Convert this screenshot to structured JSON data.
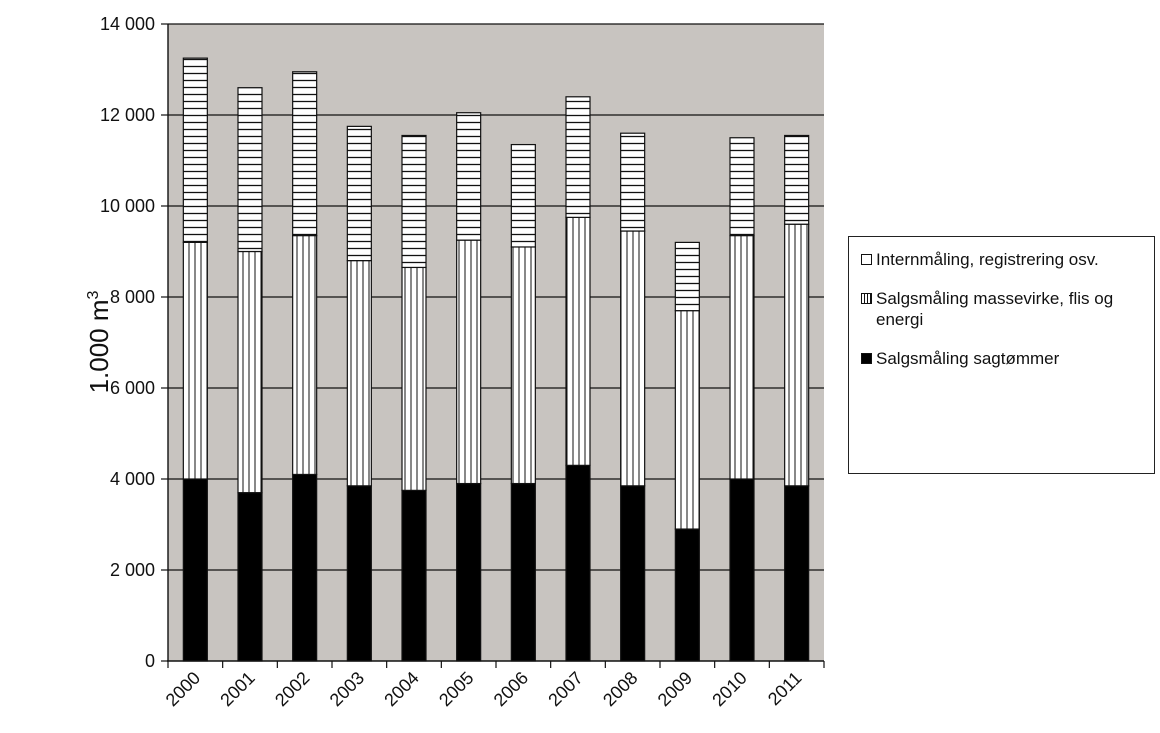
{
  "chart_data": {
    "type": "bar",
    "stacked": true,
    "title": "",
    "xlabel": "",
    "ylabel": "1.000 m",
    "ylabel_superscript": "3",
    "ylim": [
      0,
      14000
    ],
    "yticks": [
      0,
      2000,
      4000,
      6000,
      8000,
      10000,
      12000,
      14000
    ],
    "ytick_labels": [
      "0",
      "2 000",
      "4 000",
      "6 000",
      "8 000",
      "10 000",
      "12 000",
      "14 000"
    ],
    "grid": true,
    "legend_position": "right",
    "categories": [
      "2000",
      "2001",
      "2002",
      "2003",
      "2004",
      "2005",
      "2006",
      "2007",
      "2008",
      "2009",
      "2010",
      "2011"
    ],
    "series": [
      {
        "name": "Salgsmåling sagtømmer",
        "values": [
          4000,
          3700,
          4100,
          3850,
          3750,
          3900,
          3900,
          4300,
          3850,
          2900,
          4000,
          3850
        ]
      },
      {
        "name": "Salgsmåling massevirke, flis og energi",
        "values": [
          5200,
          5300,
          5250,
          4950,
          4900,
          5350,
          5200,
          5450,
          5600,
          4800,
          5350,
          5750
        ]
      },
      {
        "name": "Internmåling, registrering osv.",
        "values": [
          4050,
          3600,
          3600,
          2950,
          2900,
          2800,
          2250,
          2650,
          2150,
          1500,
          2150,
          1950
        ]
      }
    ],
    "colors": {
      "plot_background": "#c8c4c0",
      "sagtommer": "#000000",
      "massevirke": "#ffffff",
      "internmaling": "#ffffff",
      "line": "#111111"
    }
  }
}
